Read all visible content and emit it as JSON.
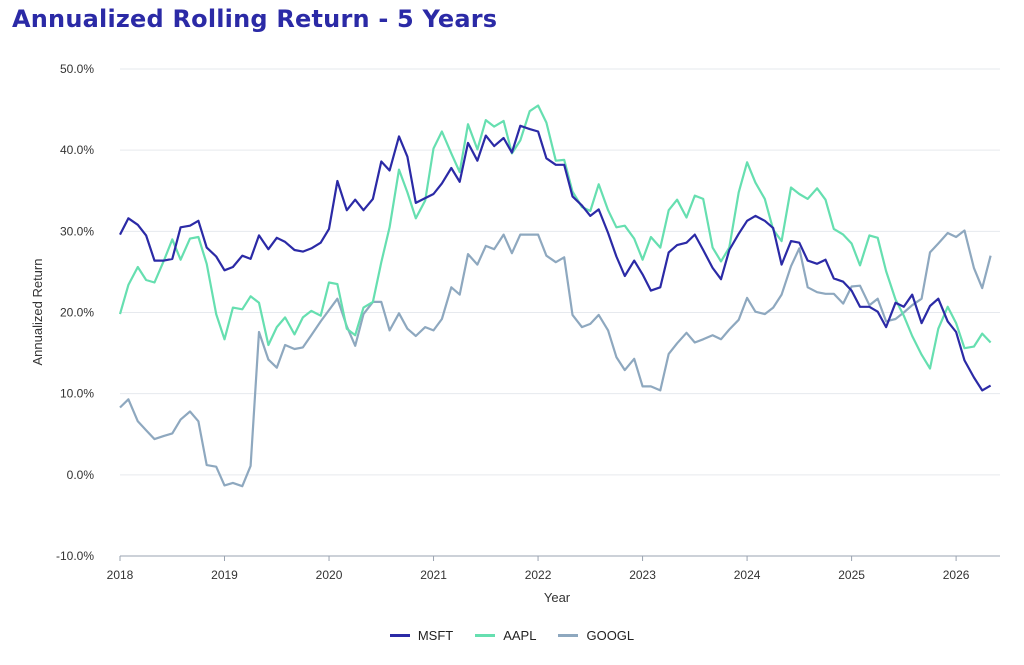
{
  "chart_data": {
    "type": "line",
    "title": "Annualized Rolling Return - 5 Years",
    "xlabel": "Year",
    "ylabel": "Annualized Return",
    "xlim": [
      2018.0,
      2026.42
    ],
    "ylim": [
      -10,
      50
    ],
    "x_ticks": [
      "2018",
      "2019",
      "2020",
      "2021",
      "2022",
      "2023",
      "2024",
      "2025",
      "2026"
    ],
    "y_ticks": [
      "-10.0%",
      "0.0%",
      "10.0%",
      "20.0%",
      "30.0%",
      "40.0%",
      "50.0%"
    ],
    "grid": "horizontal",
    "legend_position": "bottom-center",
    "series": [
      {
        "name": "MSFT",
        "color": "#2b2aa6",
        "x": [
          2018.0,
          2018.08,
          2018.17,
          2018.25,
          2018.33,
          2018.42,
          2018.5,
          2018.58,
          2018.67,
          2018.75,
          2018.83,
          2018.92,
          2019.0,
          2019.08,
          2019.17,
          2019.25,
          2019.33,
          2019.42,
          2019.5,
          2019.58,
          2019.67,
          2019.75,
          2019.83,
          2019.92,
          2020.0,
          2020.08,
          2020.17,
          2020.25,
          2020.33,
          2020.42,
          2020.5,
          2020.58,
          2020.67,
          2020.75,
          2020.83,
          2020.92,
          2021.0,
          2021.08,
          2021.17,
          2021.25,
          2021.33,
          2021.42,
          2021.5,
          2021.58,
          2021.67,
          2021.75,
          2021.83,
          2021.92,
          2022.0,
          2022.08,
          2022.17,
          2022.25,
          2022.33,
          2022.42,
          2022.5,
          2022.58,
          2022.67,
          2022.75,
          2022.83,
          2022.92,
          2023.0,
          2023.08,
          2023.17,
          2023.25,
          2023.33,
          2023.42,
          2023.5,
          2023.58,
          2023.67,
          2023.75,
          2023.83,
          2023.92,
          2024.0,
          2024.08,
          2024.17,
          2024.25,
          2024.33,
          2024.42,
          2024.5,
          2024.58,
          2024.67,
          2024.75,
          2024.83,
          2024.92,
          2025.0,
          2025.08,
          2025.17,
          2025.25,
          2025.33,
          2025.42,
          2025.5,
          2025.58,
          2025.67,
          2025.75,
          2025.83,
          2025.92,
          2026.0,
          2026.08,
          2026.17,
          2026.25,
          2026.33
        ],
        "values": [
          29.6,
          31.6,
          30.8,
          29.5,
          26.4,
          26.4,
          26.6,
          30.5,
          30.7,
          31.3,
          28.0,
          26.9,
          25.2,
          25.6,
          27.0,
          26.6,
          29.5,
          27.8,
          29.2,
          28.7,
          27.7,
          27.5,
          27.9,
          28.6,
          30.3,
          36.2,
          32.6,
          33.9,
          32.6,
          34.0,
          38.6,
          37.5,
          41.7,
          39.2,
          33.5,
          34.1,
          34.6,
          35.9,
          37.8,
          36.1,
          40.9,
          38.7,
          41.8,
          40.5,
          41.5,
          39.7,
          43.0,
          42.6,
          42.3,
          39.0,
          38.2,
          38.2,
          34.3,
          33.2,
          31.9,
          32.7,
          29.8,
          26.9,
          24.5,
          26.4,
          24.7,
          22.7,
          23.1,
          27.4,
          28.3,
          28.6,
          29.6,
          27.7,
          25.5,
          24.1,
          27.7,
          29.7,
          31.3,
          31.9,
          31.3,
          30.4,
          25.9,
          28.8,
          28.6,
          26.4,
          26.0,
          26.5,
          24.2,
          23.8,
          22.7,
          20.7,
          20.7,
          20.1,
          18.2,
          21.2,
          20.7,
          22.2,
          18.7,
          20.8,
          21.7,
          18.9,
          17.6,
          14.1,
          12.0,
          10.4,
          11.0
        ]
      },
      {
        "name": "AAPL",
        "color": "#66dfb0",
        "x": [
          2018.0,
          2018.08,
          2018.17,
          2018.25,
          2018.33,
          2018.42,
          2018.5,
          2018.58,
          2018.67,
          2018.75,
          2018.83,
          2018.92,
          2019.0,
          2019.08,
          2019.17,
          2019.25,
          2019.33,
          2019.42,
          2019.5,
          2019.58,
          2019.67,
          2019.75,
          2019.83,
          2019.92,
          2020.0,
          2020.08,
          2020.17,
          2020.25,
          2020.33,
          2020.42,
          2020.5,
          2020.58,
          2020.67,
          2020.75,
          2020.83,
          2020.92,
          2021.0,
          2021.08,
          2021.17,
          2021.25,
          2021.33,
          2021.42,
          2021.5,
          2021.58,
          2021.67,
          2021.75,
          2021.83,
          2021.92,
          2022.0,
          2022.08,
          2022.17,
          2022.25,
          2022.33,
          2022.42,
          2022.5,
          2022.58,
          2022.67,
          2022.75,
          2022.83,
          2022.92,
          2023.0,
          2023.08,
          2023.17,
          2023.25,
          2023.33,
          2023.42,
          2023.5,
          2023.58,
          2023.67,
          2023.75,
          2023.83,
          2023.92,
          2024.0,
          2024.08,
          2024.17,
          2024.25,
          2024.33,
          2024.42,
          2024.5,
          2024.58,
          2024.67,
          2024.75,
          2024.83,
          2024.92,
          2025.0,
          2025.08,
          2025.17,
          2025.25,
          2025.33,
          2025.42,
          2025.5,
          2025.58,
          2025.67,
          2025.75,
          2025.83,
          2025.92,
          2026.0,
          2026.08,
          2026.17,
          2026.25,
          2026.33
        ],
        "values": [
          19.8,
          23.4,
          25.6,
          24.0,
          23.7,
          26.4,
          29.0,
          26.5,
          29.1,
          29.3,
          26.0,
          19.8,
          16.7,
          20.6,
          20.4,
          22.0,
          21.2,
          16.0,
          18.2,
          19.4,
          17.3,
          19.4,
          20.2,
          19.6,
          23.7,
          23.5,
          18.0,
          17.2,
          20.6,
          21.3,
          26.2,
          30.5,
          37.6,
          34.8,
          31.6,
          33.8,
          40.2,
          42.3,
          39.6,
          37.3,
          43.2,
          40.1,
          43.7,
          42.9,
          43.6,
          39.6,
          41.2,
          44.8,
          45.5,
          43.4,
          38.7,
          38.8,
          34.9,
          33.0,
          32.5,
          35.8,
          32.6,
          30.5,
          30.7,
          29.1,
          26.5,
          29.3,
          28.0,
          32.6,
          33.9,
          31.7,
          34.4,
          34.0,
          28.0,
          26.3,
          28.0,
          34.8,
          38.5,
          36.0,
          34.0,
          30.2,
          28.8,
          35.4,
          34.6,
          34.0,
          35.3,
          33.9,
          30.3,
          29.6,
          28.5,
          25.8,
          29.5,
          29.2,
          25.1,
          21.6,
          19.6,
          17.1,
          14.8,
          13.1,
          18.0,
          20.7,
          18.7,
          15.6,
          15.8,
          17.4,
          16.3
        ]
      },
      {
        "name": "GOOGL",
        "color": "#8ea8bf",
        "x": [
          2018.0,
          2018.08,
          2018.17,
          2018.25,
          2018.33,
          2018.42,
          2018.5,
          2018.58,
          2018.67,
          2018.75,
          2018.83,
          2018.92,
          2019.0,
          2019.08,
          2019.17,
          2019.25,
          2019.33,
          2019.42,
          2019.5,
          2019.58,
          2019.67,
          2019.75,
          2019.83,
          2019.92,
          2020.0,
          2020.08,
          2020.17,
          2020.25,
          2020.33,
          2020.42,
          2020.5,
          2020.58,
          2020.67,
          2020.75,
          2020.83,
          2020.92,
          2021.0,
          2021.08,
          2021.17,
          2021.25,
          2021.33,
          2021.42,
          2021.5,
          2021.58,
          2021.67,
          2021.75,
          2021.83,
          2021.92,
          2022.0,
          2022.08,
          2022.17,
          2022.25,
          2022.33,
          2022.42,
          2022.5,
          2022.58,
          2022.67,
          2022.75,
          2022.83,
          2022.92,
          2023.0,
          2023.08,
          2023.17,
          2023.25,
          2023.33,
          2023.42,
          2023.5,
          2023.58,
          2023.67,
          2023.75,
          2023.83,
          2023.92,
          2024.0,
          2024.08,
          2024.17,
          2024.25,
          2024.33,
          2024.42,
          2024.5,
          2024.58,
          2024.67,
          2024.75,
          2024.83,
          2024.92,
          2025.0,
          2025.08,
          2025.17,
          2025.25,
          2025.33,
          2025.42,
          2025.5,
          2025.58,
          2025.67,
          2025.75,
          2025.83,
          2025.92,
          2026.0,
          2026.08,
          2026.17,
          2026.25,
          2026.33
        ],
        "values": [
          8.3,
          9.3,
          6.6,
          5.5,
          4.4,
          4.8,
          5.1,
          6.8,
          7.8,
          6.6,
          1.2,
          1.0,
          -1.3,
          -1.0,
          -1.4,
          1.1,
          17.6,
          14.2,
          13.2,
          16.0,
          15.5,
          15.7,
          17.2,
          18.9,
          20.3,
          21.7,
          18.3,
          15.9,
          19.8,
          21.3,
          21.3,
          17.8,
          19.9,
          18.0,
          17.1,
          18.2,
          17.8,
          19.2,
          23.1,
          22.2,
          27.2,
          25.9,
          28.2,
          27.8,
          29.6,
          27.3,
          29.6,
          29.6,
          29.6,
          27.0,
          26.2,
          26.8,
          19.7,
          18.2,
          18.6,
          19.7,
          17.8,
          14.5,
          12.9,
          14.3,
          10.9,
          10.9,
          10.4,
          14.9,
          16.2,
          17.5,
          16.3,
          16.7,
          17.2,
          16.7,
          17.9,
          19.1,
          21.8,
          20.1,
          19.8,
          20.6,
          22.2,
          25.7,
          27.9,
          23.1,
          22.5,
          22.3,
          22.3,
          21.1,
          23.2,
          23.3,
          20.9,
          21.7,
          18.9,
          19.2,
          20.0,
          20.9,
          21.7,
          27.4,
          28.5,
          29.8,
          29.3,
          30.1,
          25.5,
          23.0,
          27.0
        ]
      }
    ]
  }
}
